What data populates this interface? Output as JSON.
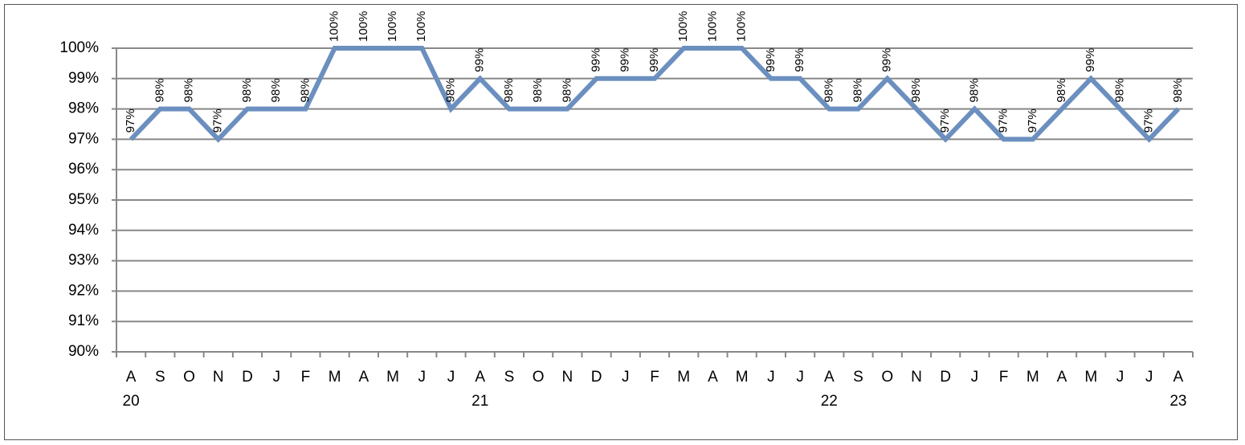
{
  "chart_data": {
    "type": "line",
    "categories": [
      "A",
      "S",
      "O",
      "N",
      "D",
      "J",
      "F",
      "M",
      "A",
      "M",
      "J",
      "J",
      "A",
      "S",
      "O",
      "N",
      "D",
      "J",
      "F",
      "M",
      "A",
      "M",
      "J",
      "J",
      "A",
      "S",
      "O",
      "N",
      "D",
      "J",
      "F",
      "M",
      "A",
      "M",
      "J",
      "J",
      "A"
    ],
    "year_labels": [
      "20",
      null,
      null,
      null,
      null,
      null,
      null,
      null,
      null,
      null,
      null,
      null,
      "21",
      null,
      null,
      null,
      null,
      null,
      null,
      null,
      null,
      null,
      null,
      null,
      "22",
      null,
      null,
      null,
      null,
      null,
      null,
      null,
      null,
      null,
      null,
      null,
      "23"
    ],
    "series": [
      {
        "color": "#6b8fbf",
        "values": [
          97,
          98,
          98,
          97,
          98,
          98,
          98,
          100,
          100,
          100,
          100,
          98,
          99,
          98,
          98,
          98,
          99,
          99,
          99,
          100,
          100,
          100,
          99,
          99,
          98,
          98,
          99,
          98,
          97,
          98,
          97,
          97,
          98,
          99,
          98,
          97,
          98
        ],
        "value_labels": [
          "97%",
          "98%",
          "98%",
          "97%",
          "98%",
          "98%",
          "98%",
          "100%",
          "100%",
          "100%",
          "100%",
          "98%",
          "99%",
          "98%",
          "98%",
          "98%",
          "99%",
          "99%",
          "99%",
          "100%",
          "100%",
          "100%",
          "99%",
          "99%",
          "98%",
          "98%",
          "99%",
          "98%",
          "97%",
          "98%",
          "97%",
          "97%",
          "98%",
          "99%",
          "98%",
          "97%",
          "98%"
        ]
      }
    ],
    "ylim": [
      90,
      100
    ],
    "yticks": [
      {
        "value": 90,
        "label": "90%"
      },
      {
        "value": 91,
        "label": "91%"
      },
      {
        "value": 92,
        "label": "92%"
      },
      {
        "value": 93,
        "label": "93%"
      },
      {
        "value": 94,
        "label": "94%"
      },
      {
        "value": 95,
        "label": "95%"
      },
      {
        "value": 96,
        "label": "96%"
      },
      {
        "value": 97,
        "label": "97%"
      },
      {
        "value": 98,
        "label": "98%"
      },
      {
        "value": 99,
        "label": "99%"
      },
      {
        "value": 100,
        "label": "100%"
      }
    ],
    "grid": true
  }
}
